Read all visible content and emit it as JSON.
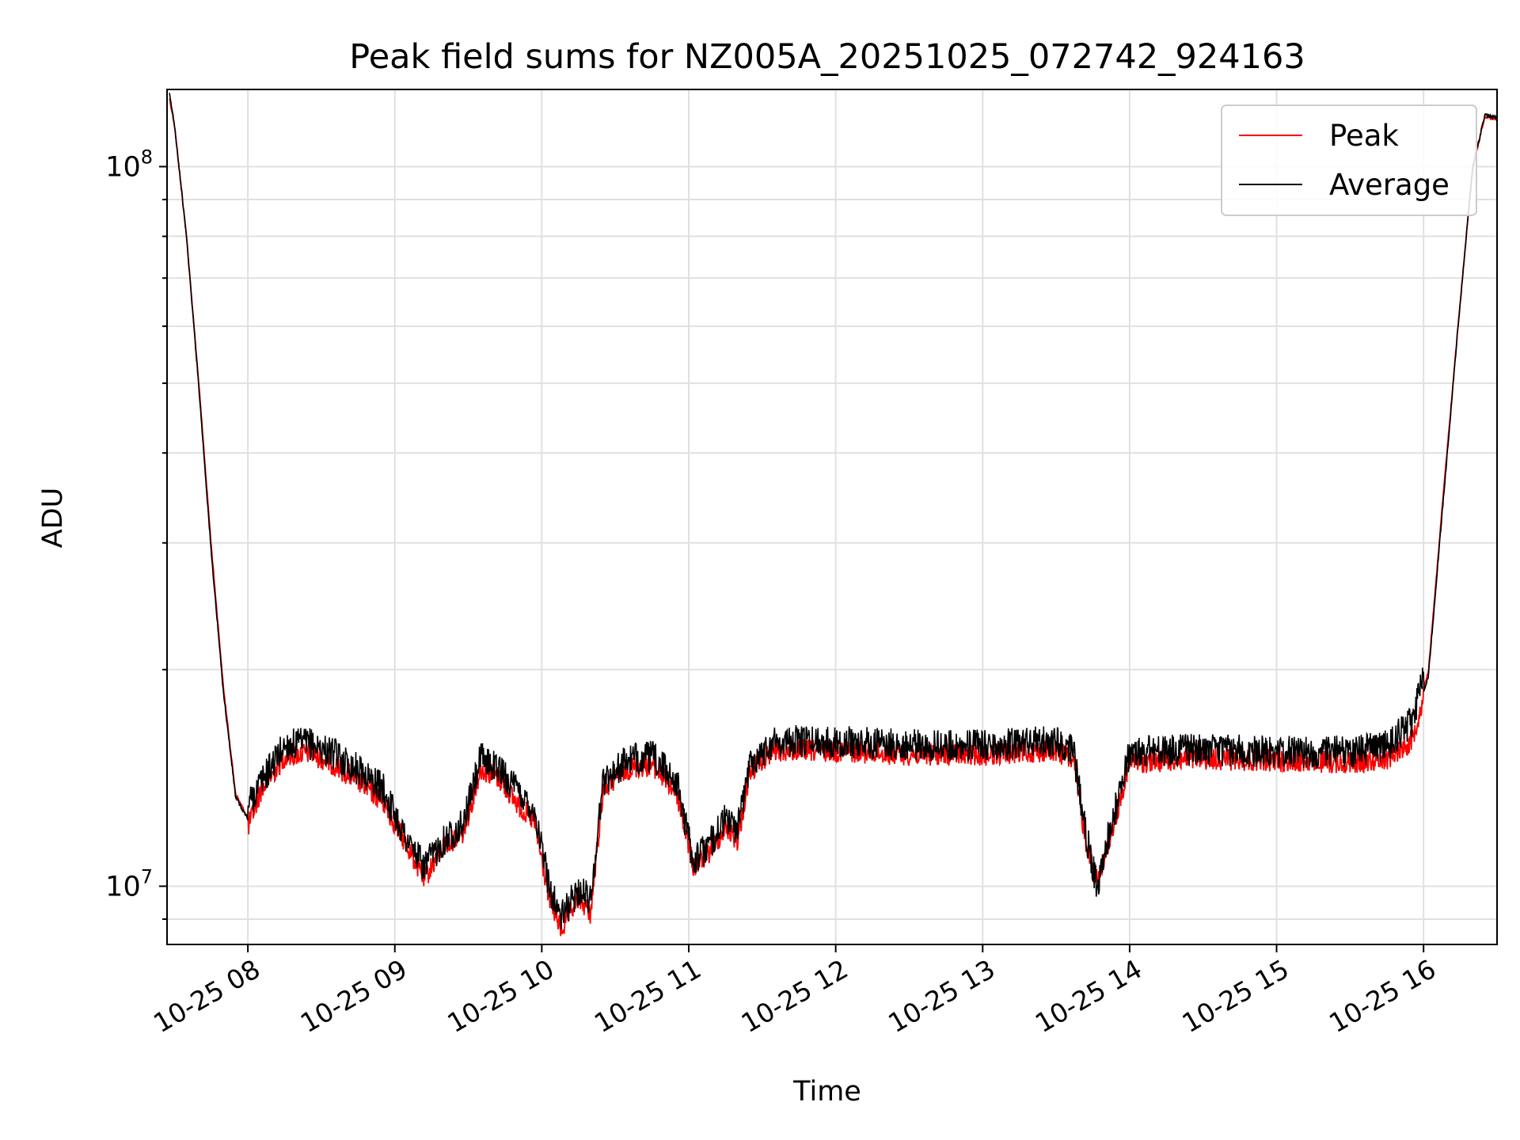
{
  "chart_data": {
    "type": "line",
    "title": "Peak field sums for NZ005A_20251025_072742_924163",
    "xlabel": "Time",
    "ylabel": "ADU",
    "yscale": "log",
    "ylim": [
      8300000,
      128000000
    ],
    "xlim": [
      "10-25 07:27",
      "10-25 16:30"
    ],
    "grid": true,
    "legend_position": "top-right",
    "x_ticks": [
      "10-25 08",
      "10-25 09",
      "10-25 10",
      "10-25 11",
      "10-25 12",
      "10-25 13",
      "10-25 14",
      "10-25 15",
      "10-25 16"
    ],
    "y_ticks": [
      {
        "value": 10000000,
        "base": "10",
        "exp": "7"
      },
      {
        "value": 100000000,
        "base": "10",
        "exp": "8"
      }
    ],
    "series": [
      {
        "name": "Peak",
        "color": "#ff0000",
        "x": [
          "10-25 07:28",
          "10-25 07:30",
          "10-25 07:35",
          "10-25 07:40",
          "10-25 07:45",
          "10-25 07:50",
          "10-25 07:55",
          "10-25 08:00",
          "10-25 08:05",
          "10-25 08:15",
          "10-25 08:25",
          "10-25 08:35",
          "10-25 08:45",
          "10-25 08:55",
          "10-25 09:05",
          "10-25 09:12",
          "10-25 09:20",
          "10-25 09:28",
          "10-25 09:35",
          "10-25 09:42",
          "10-25 09:50",
          "10-25 09:57",
          "10-25 10:03",
          "10-25 10:08",
          "10-25 10:15",
          "10-25 10:20",
          "10-25 10:25",
          "10-25 10:35",
          "10-25 10:45",
          "10-25 10:55",
          "10-25 11:02",
          "10-25 11:08",
          "10-25 11:15",
          "10-25 11:20",
          "10-25 11:25",
          "10-25 11:35",
          "10-25 12:00",
          "10-25 12:30",
          "10-25 13:00",
          "10-25 13:30",
          "10-25 13:37",
          "10-25 13:42",
          "10-25 13:47",
          "10-25 13:50",
          "10-25 13:55",
          "10-25 14:00",
          "10-25 14:30",
          "10-25 15:00",
          "10-25 15:30",
          "10-25 15:45",
          "10-25 15:55",
          "10-25 16:02",
          "10-25 16:08",
          "10-25 16:14",
          "10-25 16:20",
          "10-25 16:25",
          "10-25 16:30"
        ],
        "y": [
          125000000,
          115000000,
          80000000,
          50000000,
          30000000,
          19000000,
          13500000,
          12500000,
          14000000,
          15700000,
          15900000,
          15300000,
          14500000,
          13600000,
          11800000,
          10600000,
          11800000,
          12300000,
          15100000,
          14700000,
          13500000,
          12700000,
          10000000,
          9000000,
          10000000,
          9500000,
          14100000,
          15100000,
          15300000,
          14000000,
          11000000,
          11500000,
          12500000,
          12000000,
          15000000,
          16000000,
          16000000,
          15800000,
          15800000,
          16000000,
          15500000,
          12000000,
          10600000,
          11400000,
          13200000,
          15400000,
          15600000,
          15500000,
          15400000,
          15600000,
          16500000,
          20000000,
          35000000,
          60000000,
          100000000,
          118000000,
          117000000
        ]
      },
      {
        "name": "Average",
        "color": "#000000",
        "x": [
          "10-25 07:28",
          "10-25 07:30",
          "10-25 07:35",
          "10-25 07:40",
          "10-25 07:45",
          "10-25 07:50",
          "10-25 07:55",
          "10-25 08:00",
          "10-25 08:05",
          "10-25 08:15",
          "10-25 08:25",
          "10-25 08:35",
          "10-25 08:45",
          "10-25 08:55",
          "10-25 09:05",
          "10-25 09:12",
          "10-25 09:20",
          "10-25 09:28",
          "10-25 09:35",
          "10-25 09:42",
          "10-25 09:50",
          "10-25 09:57",
          "10-25 10:03",
          "10-25 10:08",
          "10-25 10:15",
          "10-25 10:20",
          "10-25 10:25",
          "10-25 10:35",
          "10-25 10:45",
          "10-25 10:55",
          "10-25 11:02",
          "10-25 11:08",
          "10-25 11:15",
          "10-25 11:20",
          "10-25 11:25",
          "10-25 11:35",
          "10-25 12:00",
          "10-25 12:30",
          "10-25 13:00",
          "10-25 13:30",
          "10-25 13:37",
          "10-25 13:42",
          "10-25 13:47",
          "10-25 13:50",
          "10-25 13:55",
          "10-25 14:00",
          "10-25 14:30",
          "10-25 15:00",
          "10-25 15:30",
          "10-25 15:45",
          "10-25 15:55",
          "10-25 16:02",
          "10-25 16:08",
          "10-25 16:14",
          "10-25 16:20",
          "10-25 16:25",
          "10-25 16:30"
        ],
        "y": [
          125000000,
          114000000,
          79000000,
          49000000,
          29000000,
          18500000,
          13200000,
          12300000,
          13200000,
          14900000,
          15000000,
          14500000,
          13800000,
          13000000,
          11000000,
          10100000,
          11000000,
          11600000,
          14300000,
          13900000,
          12900000,
          12100000,
          9500000,
          8600000,
          9400000,
          9100000,
          13300000,
          14200000,
          14400000,
          13300000,
          10300000,
          10800000,
          11800000,
          11400000,
          14100000,
          15100000,
          15100000,
          14900000,
          14900000,
          15100000,
          14700000,
          11300000,
          9400000,
          10700000,
          12500000,
          14600000,
          14700000,
          14600000,
          14600000,
          14900000,
          16000000,
          19500000,
          34000000,
          59000000,
          99000000,
          117000000,
          116000000
        ]
      }
    ]
  }
}
